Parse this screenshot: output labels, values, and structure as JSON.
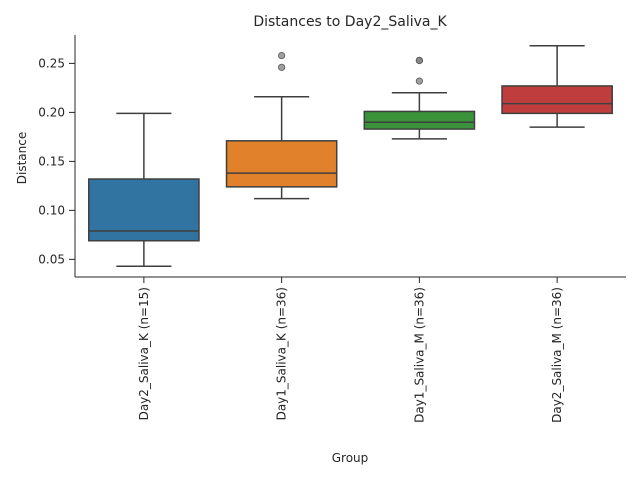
{
  "chart_data": {
    "type": "box",
    "title": "Distances to Day2_Saliva_K",
    "xlabel": "Group",
    "ylabel": "Distance",
    "ylim": [
      0.032,
      0.279
    ],
    "yticks": [
      0.05,
      0.1,
      0.15,
      0.2,
      0.25
    ],
    "ytick_labels": [
      "0.05",
      "0.10",
      "0.15",
      "0.20",
      "0.25"
    ],
    "grid": false,
    "categories": [
      "Day2_Saliva_K (n=15)",
      "Day1_Saliva_K (n=36)",
      "Day1_Saliva_M (n=36)",
      "Day2_Saliva_M (n=36)"
    ],
    "boxes": [
      {
        "label": "Day2_Saliva_K (n=15)",
        "color": "#3274a1",
        "whisker_low": 0.043,
        "q1": 0.069,
        "median": 0.079,
        "q3": 0.132,
        "whisker_high": 0.199,
        "outliers": []
      },
      {
        "label": "Day1_Saliva_K (n=36)",
        "color": "#e1812c",
        "whisker_low": 0.112,
        "q1": 0.124,
        "median": 0.138,
        "q3": 0.171,
        "whisker_high": 0.216,
        "outliers": [
          0.246,
          0.258
        ]
      },
      {
        "label": "Day1_Saliva_M (n=36)",
        "color": "#3a923a",
        "whisker_low": 0.173,
        "q1": 0.183,
        "median": 0.19,
        "q3": 0.201,
        "whisker_high": 0.22,
        "outliers": [
          0.232,
          0.253,
          0.253
        ]
      },
      {
        "label": "Day2_Saliva_M (n=36)",
        "color": "#c03d3e",
        "whisker_low": 0.185,
        "q1": 0.199,
        "median": 0.209,
        "q3": 0.227,
        "whisker_high": 0.268,
        "outliers": []
      }
    ]
  }
}
